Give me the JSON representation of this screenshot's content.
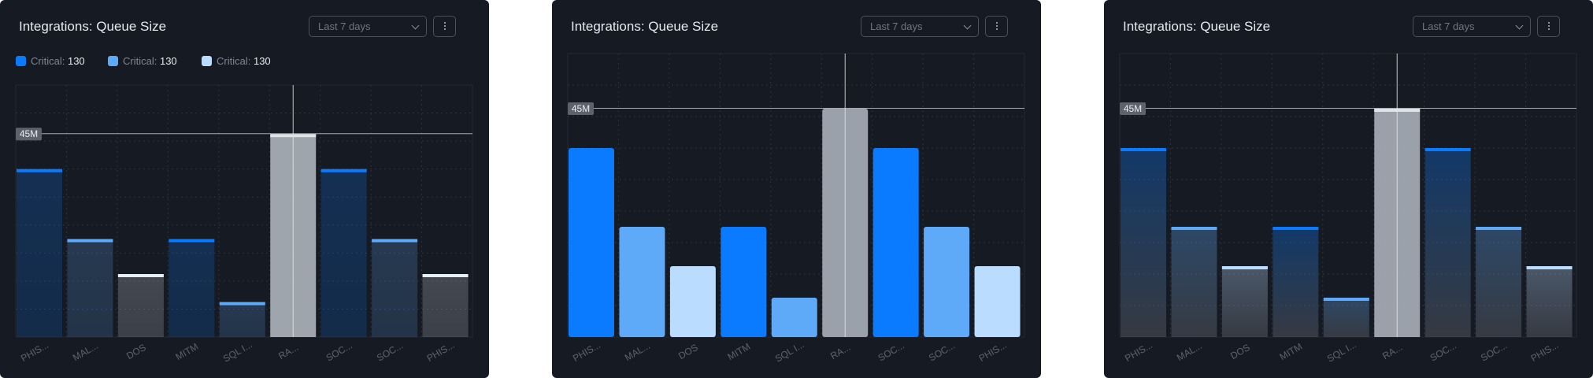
{
  "panels": [
    {
      "title": "Integrations: Queue Size",
      "range_select": "Last 7 days",
      "legend": [
        {
          "label": "Critical:",
          "value": "130",
          "color": "#0a7bff"
        },
        {
          "label": "Critical:",
          "value": "130",
          "color": "#5eaaf8"
        },
        {
          "label": "Critical:",
          "value": "130",
          "color": "#b9dcff"
        }
      ],
      "cursor_label": "45M"
    },
    {
      "title": "Integrations: Queue Size",
      "range_select": "Last 7 days",
      "cursor_label": "45M"
    },
    {
      "title": "Integrations: Queue Size",
      "range_select": "Last 7 days",
      "cursor_label": "45M"
    }
  ],
  "chart_data": [
    {
      "type": "bar",
      "style": "top-line tinted",
      "categories": [
        "PHIS...",
        "MAL...",
        "DOS",
        "MITM",
        "SQL I...",
        "RA...",
        "SOC...",
        "SOC...",
        "PHIS..."
      ],
      "values": [
        48,
        28,
        18,
        28,
        10,
        58,
        48,
        28,
        18
      ],
      "colors": [
        "#0a7bff",
        "#5eaaf8",
        "#e6eef8",
        "#0a7bff",
        "#5eaaf8",
        "#dfe3e8",
        "#0a7bff",
        "#5eaaf8",
        "#e6eef8"
      ],
      "highlighted_index": 5,
      "ylim": [
        0,
        72
      ],
      "grid": true
    },
    {
      "type": "bar",
      "style": "solid",
      "categories": [
        "PHIS...",
        "MAL...",
        "DOS",
        "MITM",
        "SQL I...",
        "RA...",
        "SOC...",
        "SOC...",
        "PHIS..."
      ],
      "values": [
        48,
        28,
        18,
        28,
        10,
        58,
        48,
        28,
        18
      ],
      "colors": [
        "#0a7bff",
        "#5eaaf8",
        "#b9dcff",
        "#0a7bff",
        "#5eaaf8",
        "#9aa1aa",
        "#0a7bff",
        "#5eaaf8",
        "#b9dcff"
      ],
      "highlighted_index": 5,
      "ylim": [
        0,
        72
      ],
      "grid": true
    },
    {
      "type": "bar",
      "style": "top-line gradient",
      "categories": [
        "PHIS...",
        "MAL...",
        "DOS",
        "MITM",
        "SQL I...",
        "RA...",
        "SOC...",
        "SOC...",
        "PHIS..."
      ],
      "values": [
        48,
        28,
        18,
        28,
        10,
        58,
        48,
        28,
        18
      ],
      "colors": [
        "#0a7bff",
        "#5eaaf8",
        "#b9dcff",
        "#0a7bff",
        "#5eaaf8",
        "#dfe3e8",
        "#0a7bff",
        "#5eaaf8",
        "#b9dcff"
      ],
      "highlighted_index": 5,
      "ylim": [
        0,
        72
      ],
      "grid": true
    }
  ]
}
